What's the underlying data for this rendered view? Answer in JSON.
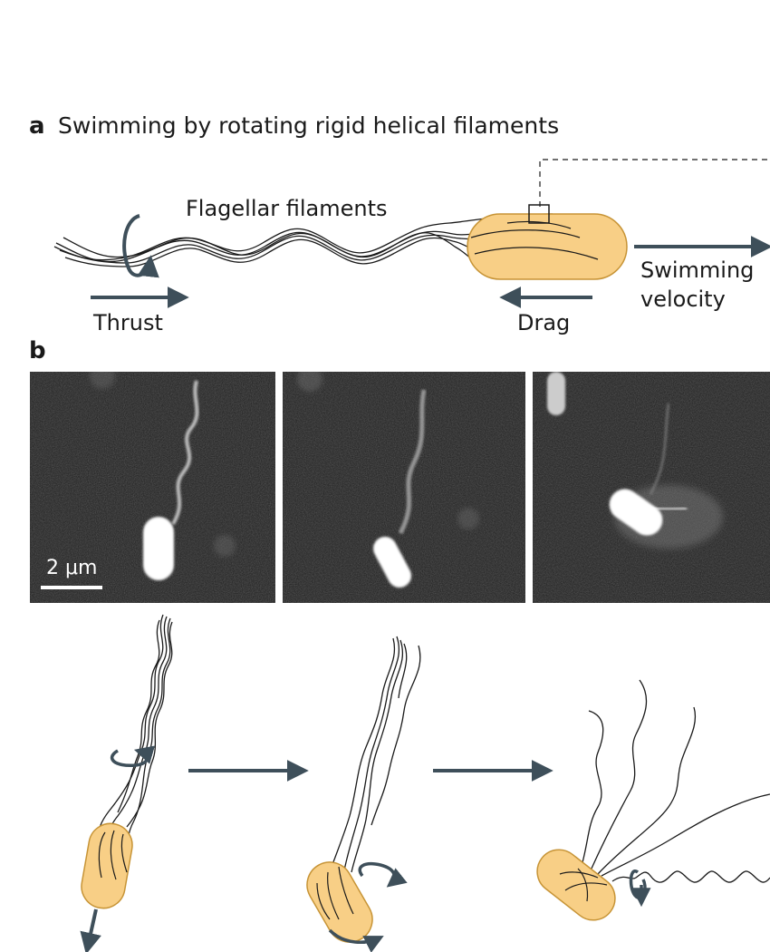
{
  "panel_a": {
    "letter": "a",
    "title": "Swimming by rotating rigid helical filaments",
    "labels": {
      "filaments": "Flagellar filaments",
      "thrust": "Thrust",
      "drag": "Drag",
      "velocity_line1": "Swimming",
      "velocity_line2": "velocity"
    }
  },
  "panel_b": {
    "letter": "b",
    "scale_bar": "2 μm"
  },
  "colors": {
    "cell_fill": "#f8cf86",
    "cell_stroke": "#c79436",
    "arrow": "#3e4f5a",
    "line": "#1a1a1a"
  }
}
